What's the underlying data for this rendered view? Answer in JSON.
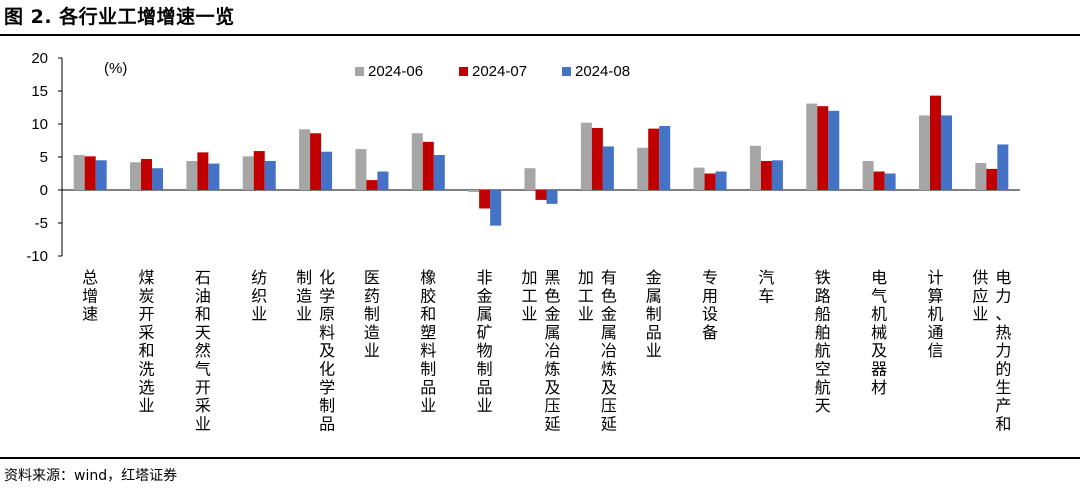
{
  "title": "图 2. 各行业工增增速一览",
  "source": "资料来源：wind，红塔证券",
  "chart_data": {
    "type": "bar",
    "unit_label": "(%)",
    "ylim": [
      -10,
      20
    ],
    "yticks": [
      20,
      15,
      10,
      5,
      0,
      -5,
      -10
    ],
    "grid": false,
    "legend_position": "top-center",
    "categories": [
      [
        "总",
        "增",
        "速"
      ],
      [
        "煤",
        "炭",
        "开",
        "采",
        "和",
        "洗",
        "选",
        "业"
      ],
      [
        "石",
        "油",
        "和",
        "天",
        "然",
        "气",
        "开",
        "采",
        "业"
      ],
      [
        "纺",
        "织",
        "业"
      ],
      [
        "化学原料及化学制品",
        "制造业"
      ],
      [
        "医",
        "药",
        "制",
        "造",
        "业"
      ],
      [
        "橡",
        "胶",
        "和",
        "塑",
        "料",
        "制",
        "品",
        "业"
      ],
      [
        "非",
        "金",
        "属",
        "矿",
        "物",
        "制",
        "品",
        "业"
      ],
      [
        "黑色金属冶炼及压延",
        "加工业"
      ],
      [
        "有色金属冶炼及压延",
        "加工业"
      ],
      [
        "金",
        "属",
        "制",
        "品",
        "业"
      ],
      [
        "专",
        "用",
        "设",
        "备"
      ],
      [
        "汽",
        "车"
      ],
      [
        "铁",
        "路",
        "船",
        "舶",
        "航",
        "空",
        "航",
        "天"
      ],
      [
        "电",
        "气",
        "机",
        "械",
        "及",
        "器",
        "材"
      ],
      [
        "计",
        "算",
        "机",
        "通",
        "信"
      ],
      [
        "电力、热力的生产和",
        "供应业"
      ]
    ],
    "series": [
      {
        "name": "2024-06",
        "color": "#a6a6a6",
        "values": [
          5.3,
          4.2,
          4.4,
          5.1,
          9.2,
          6.2,
          8.6,
          -0.3,
          3.3,
          10.2,
          6.4,
          3.4,
          6.7,
          13.1,
          4.4,
          11.3,
          4.1
        ]
      },
      {
        "name": "2024-07",
        "color": "#c00000",
        "values": [
          5.1,
          4.7,
          5.7,
          5.9,
          8.6,
          1.5,
          7.3,
          -2.8,
          -1.5,
          9.4,
          9.3,
          2.5,
          4.4,
          12.7,
          2.8,
          14.3,
          3.2
        ]
      },
      {
        "name": "2024-08",
        "color": "#4472c4",
        "values": [
          4.5,
          3.3,
          4.0,
          4.4,
          5.8,
          2.8,
          5.3,
          -5.4,
          -2.1,
          6.6,
          9.7,
          2.8,
          4.5,
          12.0,
          2.5,
          11.3,
          6.9
        ]
      }
    ]
  }
}
